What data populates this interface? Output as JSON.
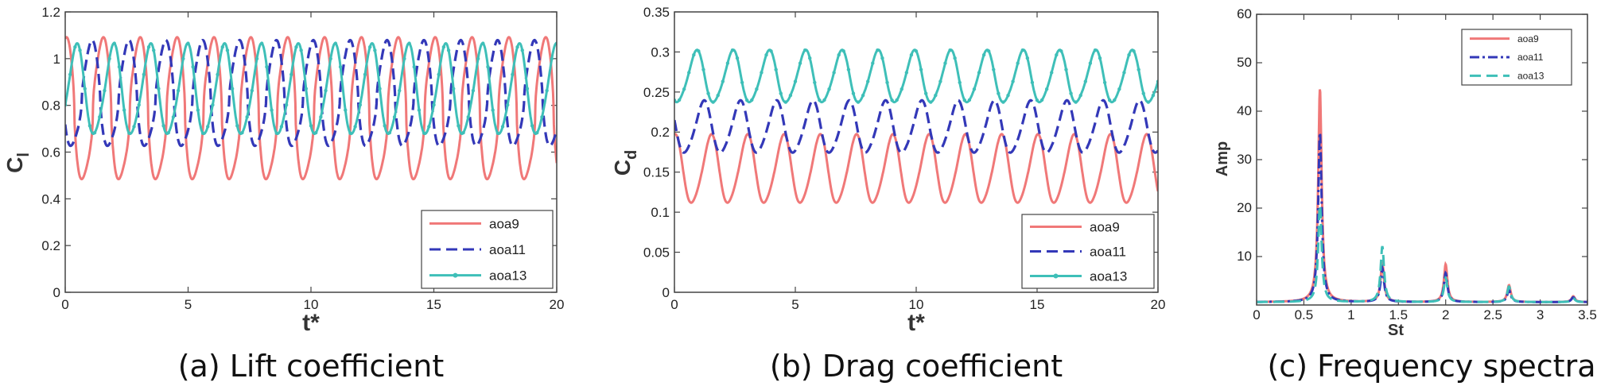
{
  "colors": {
    "aoa9": "#f07878",
    "aoa11": "#3338b8",
    "aoa13": "#3ebfb8"
  },
  "chart_data": [
    {
      "id": "a",
      "type": "line",
      "caption": "(a) Lift coefficient",
      "xlabel": "t*",
      "ylabel": "C",
      "ylabel_sub": "l",
      "xlim": [
        0,
        20
      ],
      "ylim": [
        0,
        1.2
      ],
      "xticks": [
        "0",
        "5",
        "10",
        "15",
        "20"
      ],
      "yticks": [
        "0",
        "0.2",
        "0.4",
        "0.6",
        "0.8",
        "1",
        "1.2"
      ],
      "legend": [
        "aoa9",
        "aoa11",
        "aoa13"
      ],
      "legend_position": "bottom-right",
      "series": [
        {
          "name": "aoa9",
          "style": "solid",
          "mean": 0.77,
          "amplitude": 0.295,
          "period": 1.5,
          "phase": 0.0,
          "sharp": 2.0,
          "x_start": 0,
          "x_end": 20
        },
        {
          "name": "aoa11",
          "style": "dashed",
          "mean": 0.84,
          "amplitude": 0.22,
          "period": 1.5,
          "phase": 0.3,
          "sharp": 1.5,
          "x_start": 0,
          "x_end": 20
        },
        {
          "name": "aoa13",
          "style": "marker-line",
          "mean": 0.86,
          "amplitude": 0.19,
          "period": 1.5,
          "phase": 0.7,
          "sharp": 1.0,
          "x_start": 0,
          "x_end": 20
        }
      ]
    },
    {
      "id": "b",
      "type": "line",
      "caption": "(b) Drag coefficient",
      "xlabel": "t*",
      "ylabel": "C",
      "ylabel_sub": "d",
      "xlim": [
        0,
        20
      ],
      "ylim": [
        0,
        0.35
      ],
      "xticks": [
        "0",
        "5",
        "10",
        "15",
        "20"
      ],
      "yticks": [
        "0",
        "0.05",
        "0.1",
        "0.15",
        "0.2",
        "0.25",
        "0.3",
        "0.35"
      ],
      "legend": [
        "aoa9",
        "aoa11",
        "aoa13"
      ],
      "legend_position": "bottom-right",
      "series": [
        {
          "name": "aoa9",
          "style": "solid",
          "mean": 0.152,
          "amplitude": 0.042,
          "period": 1.5,
          "phase": 0.0,
          "sharp": 1.0,
          "x_start": 0,
          "x_end": 20
        },
        {
          "name": "aoa11",
          "style": "dashed",
          "mean": 0.205,
          "amplitude": 0.032,
          "period": 1.5,
          "phase": 0.2,
          "sharp": 1.0,
          "x_start": 0,
          "x_end": 20
        },
        {
          "name": "aoa13",
          "style": "marker-line",
          "mean": 0.268,
          "amplitude": 0.032,
          "period": 1.5,
          "phase": 0.4,
          "sharp": 1.0,
          "x_start": 0,
          "x_end": 20
        }
      ]
    },
    {
      "id": "c",
      "type": "line",
      "caption": "(c) Frequency spectra",
      "xlabel": "St",
      "ylabel": "Amp",
      "xlim": [
        0,
        3.5
      ],
      "ylim": [
        0,
        60
      ],
      "xticks": [
        "0",
        "0.5",
        "1",
        "1.5",
        "2",
        "2.5",
        "3",
        "3.5"
      ],
      "yticks": [
        "10",
        "20",
        "30",
        "40",
        "50",
        "60"
      ],
      "legend": [
        "aoa9",
        "aoa11",
        "aoa13"
      ],
      "legend_position": "top-right",
      "series": [
        {
          "name": "aoa9",
          "style": "solid",
          "peaks": [
            [
              0.67,
              44
            ],
            [
              1.33,
              8
            ],
            [
              2.0,
              7.8
            ],
            [
              2.67,
              3.5
            ],
            [
              3.35,
              1.2
            ]
          ]
        },
        {
          "name": "aoa11",
          "style": "dashdot",
          "peaks": [
            [
              0.67,
              35
            ],
            [
              1.33,
              7
            ],
            [
              2.0,
              6
            ],
            [
              2.67,
              2.5
            ],
            [
              3.35,
              1.0
            ]
          ]
        },
        {
          "name": "aoa13",
          "style": "dashed",
          "peaks": [
            [
              0.67,
              20
            ],
            [
              1.33,
              11.5
            ],
            [
              2.0,
              5
            ],
            [
              2.67,
              3.2
            ],
            [
              3.35,
              0.8
            ]
          ]
        }
      ]
    }
  ]
}
